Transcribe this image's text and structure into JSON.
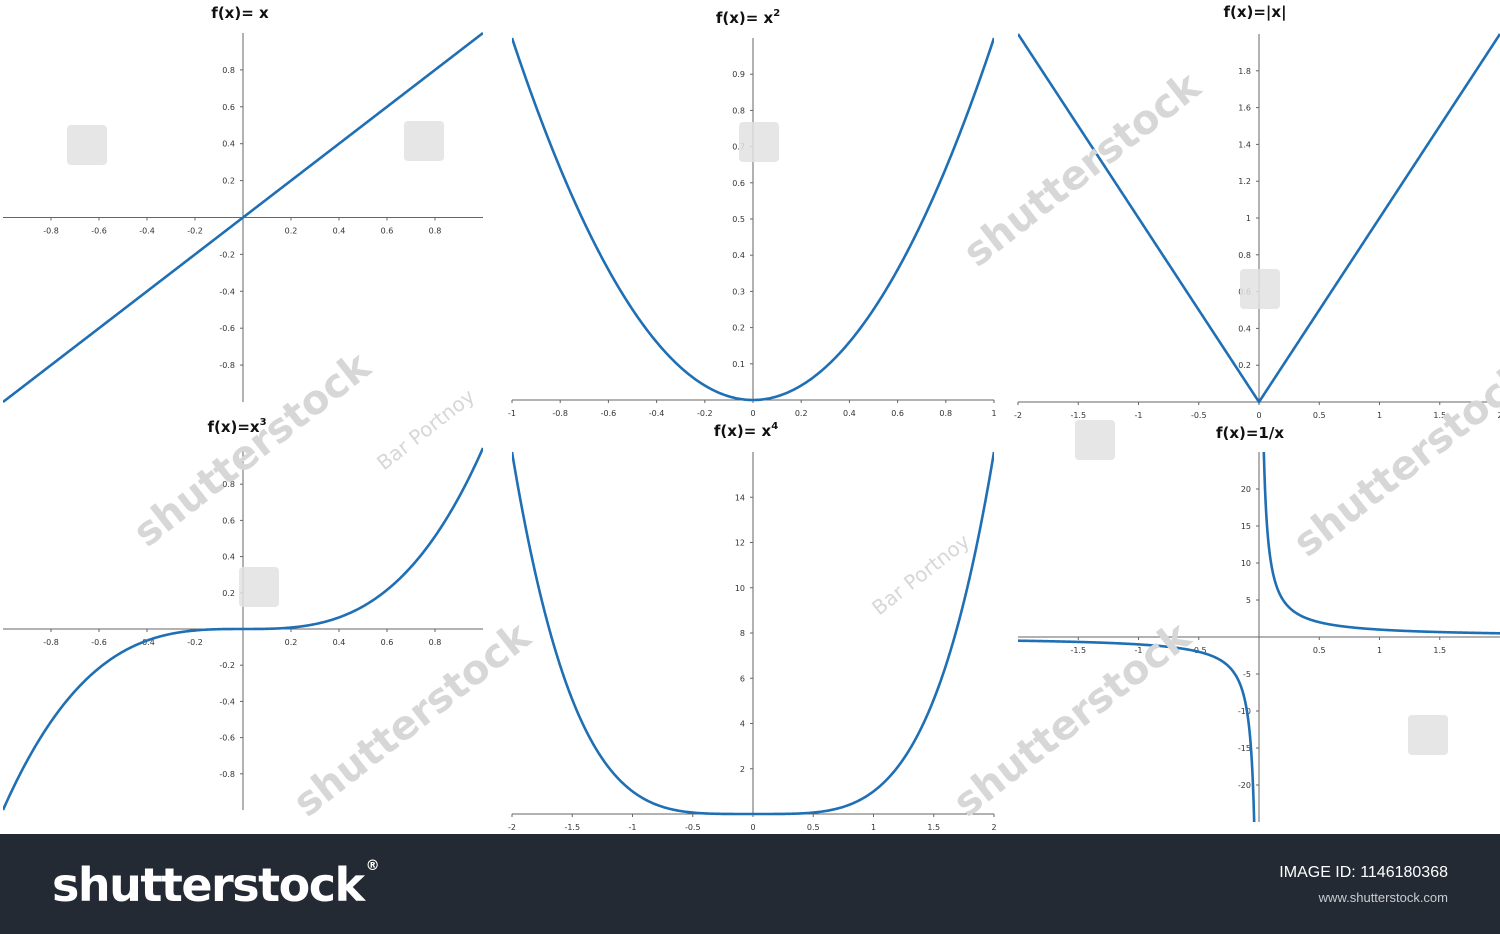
{
  "chart_data": [
    {
      "type": "line",
      "title_main": "f(x)= x",
      "title_sup": "",
      "function": "x",
      "xlim": [
        -1,
        1
      ],
      "ylim": [
        -1,
        1
      ],
      "xticks": [
        -0.8,
        -0.6,
        -0.4,
        -0.2,
        0.2,
        0.4,
        0.6,
        0.8
      ],
      "yticks": [
        -0.8,
        -0.6,
        -0.4,
        -0.2,
        0.2,
        0.4,
        0.6,
        0.8
      ],
      "color": "#1f6fb4"
    },
    {
      "type": "line",
      "title_main": "f(x)= x",
      "title_sup": "2",
      "function": "x^2",
      "xlim": [
        -1,
        1
      ],
      "ylim": [
        0,
        1
      ],
      "xticks": [
        -1,
        -0.8,
        -0.6,
        -0.4,
        -0.2,
        0,
        0.2,
        0.4,
        0.6,
        0.8,
        1
      ],
      "yticks": [
        0.1,
        0.2,
        0.3,
        0.4,
        0.5,
        0.6,
        0.7,
        0.8,
        0.9
      ],
      "color": "#1f6fb4"
    },
    {
      "type": "line",
      "title_main": "f(x)=|x|",
      "title_sup": "",
      "function": "abs",
      "xlim": [
        -2,
        2
      ],
      "ylim": [
        0,
        2
      ],
      "xticks": [
        -2,
        -1.5,
        -1,
        -0.5,
        0,
        0.5,
        1,
        1.5,
        2
      ],
      "yticks": [
        0.2,
        0.4,
        0.6,
        0.8,
        1,
        1.2,
        1.4,
        1.6,
        1.8
      ],
      "color": "#1f6fb4"
    },
    {
      "type": "line",
      "title_main": "f(x)=x",
      "title_sup": "3",
      "function": "x^3",
      "xlim": [
        -1,
        1
      ],
      "ylim": [
        -1,
        1
      ],
      "xticks": [
        -0.8,
        -0.6,
        -0.4,
        -0.2,
        0.2,
        0.4,
        0.6,
        0.8
      ],
      "yticks": [
        -0.8,
        -0.6,
        -0.4,
        -0.2,
        0.2,
        0.4,
        0.6,
        0.8
      ],
      "color": "#1f6fb4"
    },
    {
      "type": "line",
      "title_main": "f(x)= x",
      "title_sup": "4",
      "function": "x^4",
      "xlim": [
        -2,
        2
      ],
      "ylim": [
        0,
        16
      ],
      "xticks": [
        -2,
        -1.5,
        -1,
        -0.5,
        0,
        0.5,
        1,
        1.5,
        2
      ],
      "yticks": [
        2,
        4,
        6,
        8,
        10,
        12,
        14
      ],
      "color": "#1f6fb4"
    },
    {
      "type": "line",
      "title_main": "f(x)=1/x",
      "title_sup": "",
      "function": "1/x",
      "xlim": [
        -2,
        2
      ],
      "ylim": [
        -25,
        25
      ],
      "xticks": [
        -1.5,
        -1,
        -0.5,
        0.5,
        1,
        1.5
      ],
      "yticks": [
        -20,
        -15,
        -10,
        -5,
        5,
        10,
        15,
        20
      ],
      "color": "#1f6fb4"
    }
  ],
  "watermark": {
    "brand": "shutterstock",
    "author": "Bar Portnoy"
  },
  "footer": {
    "logo": "shutterstock",
    "logo_mark": "®",
    "image_id": "IMAGE ID: 1146180368",
    "url": "www.shutterstock.com"
  }
}
